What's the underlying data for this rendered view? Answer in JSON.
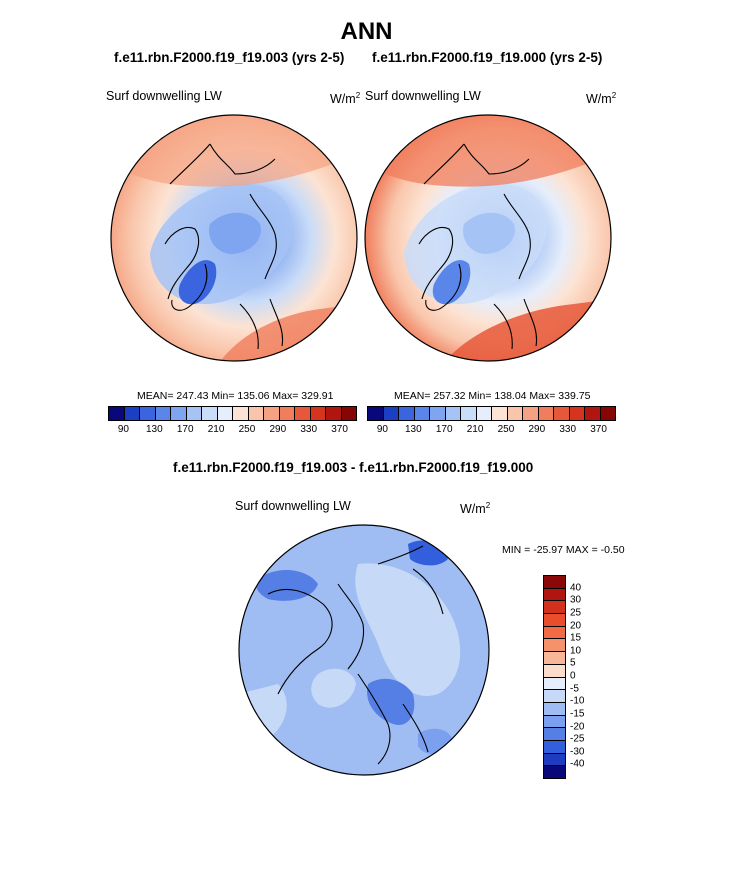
{
  "figure": {
    "title": "ANN"
  },
  "panels": [
    {
      "case_title": "f.e11.rbn.F2000.f19_f19.003 (yrs 2-5)",
      "variable": "Surf downwelling LW",
      "units": "W/m",
      "units_exp": "2",
      "stats": "MEAN= 247.43  Min= 135.06  Max= 329.91"
    },
    {
      "case_title": "f.e11.rbn.F2000.f19_f19.000 (yrs 2-5)",
      "variable": "Surf downwelling LW",
      "units": "W/m",
      "units_exp": "2",
      "stats": "MEAN= 257.32  Min= 138.04  Max= 339.75"
    }
  ],
  "diff_panel": {
    "case_title": "f.e11.rbn.F2000.f19_f19.003 - f.e11.rbn.F2000.f19_f19.000",
    "variable": "Surf downwelling LW",
    "units": "W/m",
    "units_exp": "2",
    "stats": "MIN = -25.97 MAX =  -0.50"
  },
  "colorbar_main": {
    "tick_labels": [
      "90",
      "130",
      "170",
      "210",
      "250",
      "290",
      "330",
      "370"
    ],
    "colors": [
      "#08087a",
      "#1b3fc2",
      "#3a65de",
      "#5a86ea",
      "#7fa5f0",
      "#a6c3f5",
      "#c9dcf8",
      "#e6eefb",
      "#fde3d3",
      "#f9c6ab",
      "#f5a282",
      "#f07d5c",
      "#e6583a",
      "#d6341f",
      "#b0150f",
      "#860505"
    ]
  },
  "colorbar_diff": {
    "tick_labels": [
      "40",
      "30",
      "25",
      "20",
      "15",
      "10",
      "5",
      "0",
      "-5",
      "-10",
      "-15",
      "-20",
      "-25",
      "-30",
      "-40"
    ],
    "colors": [
      "#8a0808",
      "#b0150f",
      "#d3301d",
      "#ea4d2c",
      "#f26b44",
      "#f5926c",
      "#f8b799",
      "#fcdccb",
      "#e7eefb",
      "#c6d9f7",
      "#9fbdf3",
      "#7aa0ef",
      "#567fe6",
      "#335edc",
      "#1d3cbf",
      "#08087a"
    ]
  },
  "map_colors": {
    "ocean_warm": "#f07d5c",
    "ocean_mid": "#f9c6ab",
    "cold": "#7fa5f0",
    "coldest": "#3a65de",
    "diff_base": "#9fbdf3",
    "diff_light": "#c6d9f7",
    "diff_strong": "#335edc"
  }
}
